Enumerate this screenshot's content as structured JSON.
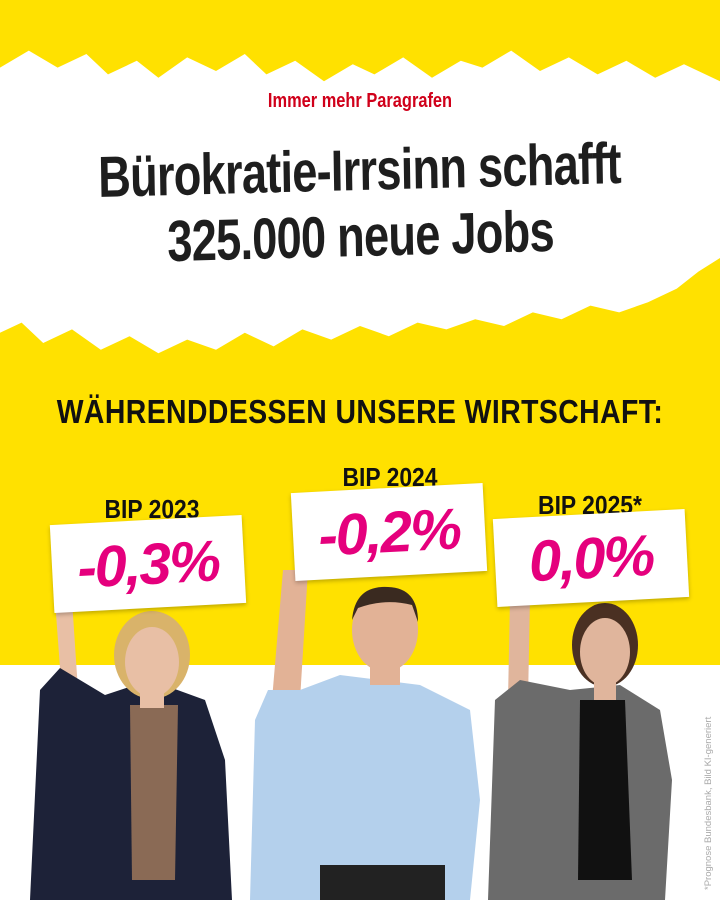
{
  "kicker": "Immer mehr Paragrafen",
  "headline": {
    "line1": "Bürokratie-Irrsinn schafft",
    "line2": "325.000 neue Jobs"
  },
  "subheadline": "WÄHRENDDESSEN UNSERE WIRTSCHAFT:",
  "signs": [
    {
      "label": "BIP 2023",
      "value": "-0,3%"
    },
    {
      "label": "BIP 2024",
      "value": "-0,2%"
    },
    {
      "label": "BIP 2025*",
      "value": "0,0%"
    }
  ],
  "credit": "*Prognose Bundesbank, Bild KI-generiert",
  "colors": {
    "yellow": "#FFE100",
    "kicker_red": "#D0001A",
    "value_pink": "#E5007D"
  }
}
